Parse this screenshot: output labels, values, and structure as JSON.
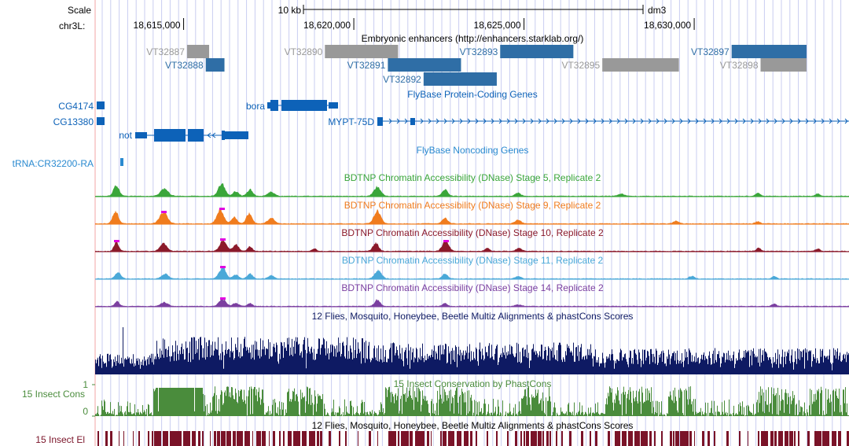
{
  "scale": {
    "label": "Scale",
    "bar_label": "10 kb",
    "assembly": "dm3"
  },
  "chromosome": {
    "label": "chr3L:",
    "ticks": [
      {
        "pos": 18615000,
        "label": "18,615,000"
      },
      {
        "pos": 18620000,
        "label": "18,620,000"
      },
      {
        "pos": 18625000,
        "label": "18,625,000"
      },
      {
        "pos": 18630000,
        "label": "18,630,000"
      }
    ]
  },
  "colors": {
    "enhancer_blue": "#2f6ea6",
    "enhancer_gray": "#999999",
    "gene_blue": "#0d62b8",
    "dnase_stage5": "#3aa63a",
    "dnase_stage9": "#f07c1e",
    "dnase_stage10": "#8b1a2b",
    "dnase_stage11": "#4aa8d8",
    "dnase_stage14": "#7b3fa0",
    "peak_cap": "#e000e0",
    "multiz": "#0e1a63",
    "cons": "#4a8c3c",
    "elements": "#7a1328",
    "grid": "#c9cdf0",
    "left_line": "#f3a6a6"
  },
  "tracks": {
    "enhancers": {
      "title": "Embryonic enhancers (http://enhancers.starklab.org/)",
      "items": [
        {
          "name": "VT32887",
          "start": 18615100,
          "end": 18615750,
          "color": "gray",
          "row": 0
        },
        {
          "name": "VT32888",
          "start": 18615650,
          "end": 18616200,
          "color": "blue",
          "row": 1
        },
        {
          "name": "VT32890",
          "start": 18619150,
          "end": 18621300,
          "color": "gray",
          "row": 0
        },
        {
          "name": "VT32891",
          "start": 18621000,
          "end": 18623150,
          "color": "blue",
          "row": 1
        },
        {
          "name": "VT32892",
          "start": 18622050,
          "end": 18624200,
          "color": "blue",
          "row": 2
        },
        {
          "name": "VT32893",
          "start": 18624300,
          "end": 18626450,
          "color": "blue",
          "row": 0
        },
        {
          "name": "VT32895",
          "start": 18627300,
          "end": 18629550,
          "color": "gray",
          "row": 1
        },
        {
          "name": "VT32897",
          "start": 18631100,
          "end": 18633300,
          "color": "blue",
          "row": 0
        },
        {
          "name": "VT32898",
          "start": 18631950,
          "end": 18633300,
          "color": "gray",
          "row": 1
        }
      ]
    },
    "protein_coding": {
      "title": "FlyBase Protein-Coding Genes",
      "genes": [
        {
          "name": "CG4174",
          "row": 0
        },
        {
          "name": "CG13380",
          "row": 1
        },
        {
          "name": "bora",
          "row": 0
        },
        {
          "name": "MYPT-75D",
          "row": 1
        },
        {
          "name": "not",
          "row": 2
        }
      ]
    },
    "noncoding": {
      "title": "FlyBase Noncoding Genes",
      "genes": [
        {
          "name": "tRNA:CR32200-RA"
        }
      ]
    },
    "dnase": [
      {
        "id": "stage5",
        "title": "BDTNP Chromatin Accessibility (DNase) Stage 5, Replicate 2"
      },
      {
        "id": "stage9",
        "title": "BDTNP Chromatin Accessibility (DNase) Stage 9, Replicate 2"
      },
      {
        "id": "stage10",
        "title": "BDTNP Chromatin Accessibility (DNase) Stage 10, Replicate 2"
      },
      {
        "id": "stage11",
        "title": "BDTNP Chromatin Accessibility (DNase) Stage 11, Replicate 2"
      },
      {
        "id": "stage14",
        "title": "BDTNP Chromatin Accessibility (DNase) Stage 14, Replicate 2"
      }
    ],
    "multiz": {
      "title": "12 Flies, Mosquito, Honeybee, Beetle Multiz Alignments & phastCons Scores"
    },
    "cons": {
      "side_label": "15 Insect Cons",
      "title": "15 Insect Conservation by PhastCons",
      "axis_max": "1",
      "axis_min": "0"
    },
    "elements": {
      "side_label": "15 Insect El",
      "title": "12 Flies, Mosquito, Honeybee, Beetle Multiz Alignments & phastCons Scores"
    }
  }
}
